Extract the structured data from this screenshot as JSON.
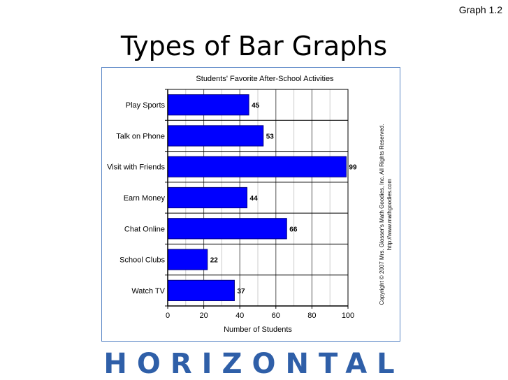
{
  "page_label": "Graph 1.2",
  "slide_title": "Types of Bar Graphs",
  "footer_word": "HORIZONTAL",
  "copyright_line1": "Copyright © 2007 Mrs. Glosser's Math Goodies, Inc. All Rights Reserved.",
  "copyright_line2": "http://www.mathgoodies.com",
  "colors": {
    "bar": "#0000ff",
    "bar_border": "#000080",
    "grid": "#000000",
    "minor_grid": "#cccccc",
    "footer": "#2f5fa8",
    "frame": "#5b87c6"
  },
  "chart_data": {
    "type": "bar",
    "orientation": "horizontal",
    "title": "Students' Favorite After-School Activities",
    "xlabel": "Number of Students",
    "ylabel": "",
    "categories": [
      "Play Sports",
      "Talk on Phone",
      "Visit with Friends",
      "Earn Money",
      "Chat Online",
      "School Clubs",
      "Watch TV"
    ],
    "values": [
      45,
      53,
      99,
      44,
      66,
      22,
      37
    ],
    "data_labels": [
      "45",
      "53",
      "99",
      "44",
      "66",
      "22",
      "37"
    ],
    "xlim": [
      0,
      100
    ],
    "xticks": [
      "0",
      "20",
      "40",
      "60",
      "80",
      "100"
    ],
    "grid": true
  }
}
